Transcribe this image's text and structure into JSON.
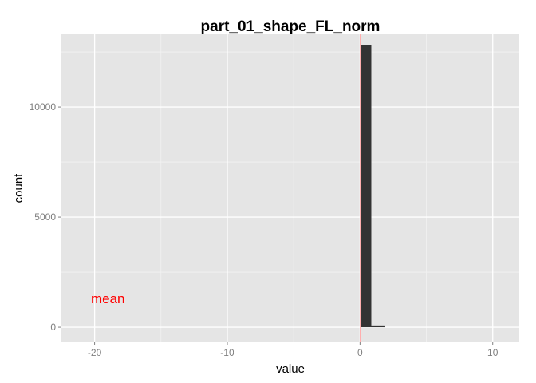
{
  "chart_data": {
    "type": "bar",
    "title": "part_01_shape_FL_norm",
    "xlabel": "value",
    "ylabel": "count",
    "xlim": [
      -22.5,
      12
    ],
    "ylim": [
      -650,
      13300
    ],
    "x_ticks": [
      -20,
      -10,
      0,
      10
    ],
    "x_tick_labels": [
      "-20",
      "-10",
      "0",
      "10"
    ],
    "y_ticks": [
      0,
      5000,
      10000
    ],
    "y_tick_labels": [
      "0",
      "5000",
      "10000"
    ],
    "grid": true,
    "bins": [
      {
        "x0": 0.1,
        "x1": 0.85,
        "count": 12800
      },
      {
        "x0": 0.85,
        "x1": 1.9,
        "count": 80
      }
    ],
    "mean_line": {
      "x": 0.05,
      "color": "#ff0000"
    },
    "annotation": {
      "text": "mean",
      "x": -19,
      "y": 1300,
      "color": "#ff0000"
    },
    "colors": {
      "panel": "#e5e5e5",
      "grid_major": "#ffffff",
      "grid_minor": "#f2f2f2",
      "bar": "#333333",
      "mean": "#ff0000"
    }
  }
}
